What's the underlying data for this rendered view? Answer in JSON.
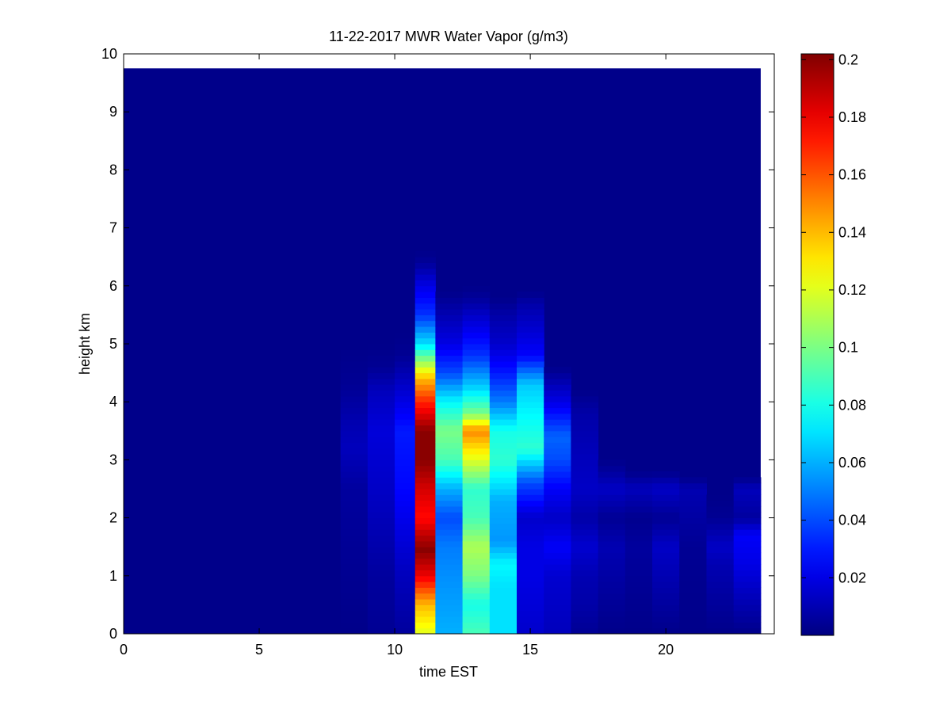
{
  "chart_data": {
    "type": "heatmap",
    "title": "11-22-2017 MWR Water Vapor (g/m3)",
    "xlabel": "time EST",
    "ylabel": "height km",
    "xlim": [
      0,
      24
    ],
    "ylim": [
      0,
      10
    ],
    "x_ticks": [
      0,
      5,
      10,
      15,
      20
    ],
    "y_ticks": [
      0,
      1,
      2,
      3,
      4,
      5,
      6,
      7,
      8,
      9,
      10
    ],
    "colormap": "jet",
    "colorbar": {
      "clim": [
        0.0,
        0.202
      ],
      "ticks": [
        0.02,
        0.04,
        0.06,
        0.08,
        0.1,
        0.12,
        0.14,
        0.16,
        0.18,
        0.2
      ],
      "tick_labels": [
        "0.02",
        "0.04",
        "0.06",
        "0.08",
        "0.1",
        "0.12",
        "0.14",
        "0.16",
        "0.18",
        "0.2"
      ]
    },
    "grid": false,
    "time_range": [
      0,
      23.5
    ],
    "height_range": [
      0,
      9.75
    ],
    "background_value": 0.002,
    "columns": [
      {
        "time": 8.5,
        "profile": [
          [
            0,
            0.002
          ],
          [
            2.5,
            0.006
          ],
          [
            3.2,
            0.012
          ],
          [
            3.6,
            0.01
          ],
          [
            4.3,
            0.004
          ],
          [
            5,
            0.002
          ]
        ]
      },
      {
        "time": 9.5,
        "profile": [
          [
            0,
            0.004
          ],
          [
            1,
            0.006
          ],
          [
            2.5,
            0.014
          ],
          [
            3.5,
            0.018
          ],
          [
            4.2,
            0.012
          ],
          [
            4.6,
            0.004
          ],
          [
            5,
            0.002
          ]
        ]
      },
      {
        "time": 10.5,
        "profile": [
          [
            0,
            0.006
          ],
          [
            1,
            0.012
          ],
          [
            2.5,
            0.026
          ],
          [
            3.5,
            0.03
          ],
          [
            4.2,
            0.016
          ],
          [
            4.8,
            0.004
          ],
          [
            5.2,
            0.002
          ]
        ]
      },
      {
        "time": 11,
        "profile": [
          [
            0,
            0.12
          ],
          [
            0.5,
            0.14
          ],
          [
            1,
            0.18
          ],
          [
            1.45,
            0.2
          ],
          [
            1.7,
            0.19
          ],
          [
            2,
            0.175
          ],
          [
            2.5,
            0.185
          ],
          [
            3,
            0.2
          ],
          [
            3.5,
            0.2
          ],
          [
            4,
            0.17
          ],
          [
            4.4,
            0.14
          ],
          [
            5,
            0.07
          ],
          [
            5.5,
            0.035
          ],
          [
            6,
            0.02
          ],
          [
            6.4,
            0.005
          ],
          [
            6.6,
            0.002
          ]
        ]
      },
      {
        "time": 12,
        "profile": [
          [
            0,
            0.06
          ],
          [
            0.8,
            0.055
          ],
          [
            1.5,
            0.05
          ],
          [
            2,
            0.04
          ],
          [
            2.5,
            0.06
          ],
          [
            3,
            0.09
          ],
          [
            3.5,
            0.1
          ],
          [
            4,
            0.075
          ],
          [
            4.5,
            0.04
          ],
          [
            5,
            0.02
          ],
          [
            5.6,
            0.008
          ],
          [
            5.9,
            0.002
          ]
        ]
      },
      {
        "time": 13,
        "profile": [
          [
            0,
            0.09
          ],
          [
            0.5,
            0.08
          ],
          [
            1,
            0.1
          ],
          [
            1.5,
            0.11
          ],
          [
            2,
            0.09
          ],
          [
            2.5,
            0.085
          ],
          [
            3,
            0.12
          ],
          [
            3.5,
            0.15
          ],
          [
            3.8,
            0.1
          ],
          [
            4.2,
            0.07
          ],
          [
            4.8,
            0.035
          ],
          [
            5.3,
            0.02
          ],
          [
            5.8,
            0.005
          ],
          [
            6,
            0.002
          ]
        ]
      },
      {
        "time": 14,
        "profile": [
          [
            0,
            0.07
          ],
          [
            0.8,
            0.07
          ],
          [
            1.2,
            0.075
          ],
          [
            1.6,
            0.055
          ],
          [
            2.3,
            0.06
          ],
          [
            3,
            0.085
          ],
          [
            3.5,
            0.08
          ],
          [
            4,
            0.05
          ],
          [
            4.5,
            0.03
          ],
          [
            5,
            0.015
          ],
          [
            5.5,
            0.008
          ],
          [
            5.8,
            0.002
          ]
        ]
      },
      {
        "time": 15,
        "profile": [
          [
            0,
            0.015
          ],
          [
            1,
            0.02
          ],
          [
            1.5,
            0.02
          ],
          [
            2,
            0.015
          ],
          [
            2.6,
            0.04
          ],
          [
            3.2,
            0.085
          ],
          [
            3.8,
            0.075
          ],
          [
            4.3,
            0.065
          ],
          [
            4.8,
            0.025
          ],
          [
            5.3,
            0.015
          ],
          [
            5.7,
            0.008
          ],
          [
            5.9,
            0.002
          ]
        ]
      },
      {
        "time": 16,
        "profile": [
          [
            0,
            0.012
          ],
          [
            1,
            0.016
          ],
          [
            1.5,
            0.024
          ],
          [
            2,
            0.014
          ],
          [
            2.5,
            0.024
          ],
          [
            3,
            0.04
          ],
          [
            3.4,
            0.045
          ],
          [
            4,
            0.02
          ],
          [
            4.4,
            0.008
          ],
          [
            4.6,
            0.002
          ]
        ]
      },
      {
        "time": 17,
        "profile": [
          [
            0,
            0.004
          ],
          [
            0.5,
            0.008
          ],
          [
            1,
            0.01
          ],
          [
            1.5,
            0.016
          ],
          [
            2,
            0.008
          ],
          [
            2.5,
            0.014
          ],
          [
            3,
            0.012
          ],
          [
            3.8,
            0.008
          ],
          [
            4.2,
            0.002
          ]
        ]
      },
      {
        "time": 18,
        "profile": [
          [
            0,
            0.002
          ],
          [
            1.5,
            0.01
          ],
          [
            2,
            0.004
          ],
          [
            2.5,
            0.014
          ],
          [
            2.8,
            0.006
          ],
          [
            3,
            0.002
          ]
        ]
      },
      {
        "time": 19,
        "profile": [
          [
            0,
            0.002
          ],
          [
            1.5,
            0.006
          ],
          [
            2,
            0.003
          ],
          [
            2.5,
            0.012
          ],
          [
            2.8,
            0.002
          ]
        ]
      },
      {
        "time": 20,
        "profile": [
          [
            0,
            0.002
          ],
          [
            1.5,
            0.014
          ],
          [
            2,
            0.004
          ],
          [
            2.5,
            0.014
          ],
          [
            2.8,
            0.002
          ]
        ]
      },
      {
        "time": 21,
        "profile": [
          [
            0,
            0.002
          ],
          [
            1.5,
            0.004
          ],
          [
            2.5,
            0.01
          ],
          [
            2.7,
            0.002
          ]
        ]
      },
      {
        "time": 22,
        "profile": [
          [
            0,
            0.002
          ],
          [
            1.2,
            0.01
          ],
          [
            1.5,
            0.014
          ],
          [
            2,
            0.004
          ],
          [
            2.4,
            0.002
          ]
        ]
      },
      {
        "time": 23,
        "profile": [
          [
            0,
            0.002
          ],
          [
            1.2,
            0.02
          ],
          [
            1.7,
            0.024
          ],
          [
            2,
            0.006
          ],
          [
            2.5,
            0.012
          ],
          [
            2.7,
            0.002
          ]
        ]
      }
    ]
  }
}
